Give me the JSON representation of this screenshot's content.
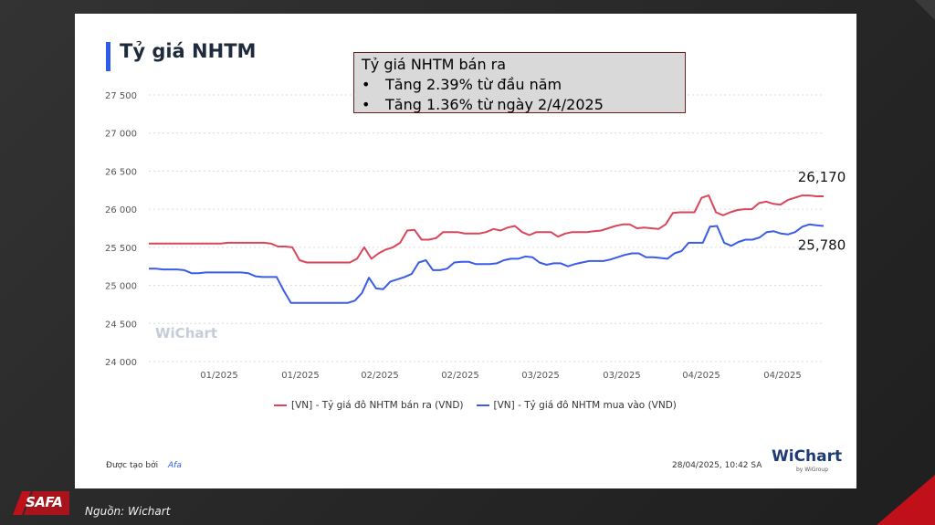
{
  "title": "Tỷ giá NHTM",
  "note": {
    "heading": "Tỷ giá NHTM bán ra",
    "bullets": [
      "Tăng 2.39% từ đầu năm",
      "Tăng 1.36% từ ngày 2/4/2025"
    ]
  },
  "chart_data": {
    "type": "line",
    "yticks": [
      "27 500",
      "27 000",
      "26 500",
      "26 000",
      "25 500",
      "25 000",
      "24 500",
      "24 000"
    ],
    "ylim": [
      24000,
      27500
    ],
    "xticks": [
      "01/2025",
      "01/2025",
      "02/2025",
      "02/2025",
      "03/2025",
      "03/2025",
      "04/2025",
      "04/2025"
    ],
    "grid": true,
    "series": [
      {
        "name": "[VN] - Tỷ giá đô NHTM bán ra (VND)",
        "color": "#d9465a",
        "end_label": "26,170",
        "values": [
          25550,
          25550,
          25550,
          25550,
          25550,
          25550,
          25550,
          25550,
          25550,
          25550,
          25550,
          25560,
          25560,
          25560,
          25560,
          25560,
          25560,
          25550,
          25510,
          25510,
          25500,
          25330,
          25300,
          25300,
          25300,
          25300,
          25300,
          25300,
          25300,
          25350,
          25500,
          25350,
          25420,
          25470,
          25500,
          25560,
          25720,
          25730,
          25600,
          25600,
          25620,
          25700,
          25700,
          25700,
          25680,
          25680,
          25680,
          25700,
          25740,
          25720,
          25760,
          25780,
          25700,
          25660,
          25700,
          25700,
          25700,
          25640,
          25680,
          25700,
          25700,
          25700,
          25710,
          25720,
          25750,
          25780,
          25800,
          25800,
          25750,
          25760,
          25750,
          25740,
          25800,
          25950,
          25960,
          25960,
          25960,
          26150,
          26180,
          25960,
          25920,
          25960,
          25990,
          26000,
          26000,
          26080,
          26100,
          26070,
          26060,
          26120,
          26150,
          26180,
          26180,
          26170,
          26170
        ]
      },
      {
        "name": "[VN] - Tỷ giá đô NHTM mua vào (VND)",
        "color": "#3b5ce6",
        "end_label": "25,780",
        "values": [
          25220,
          25220,
          25210,
          25210,
          25210,
          25200,
          25160,
          25160,
          25170,
          25170,
          25170,
          25170,
          25170,
          25170,
          25160,
          25120,
          25110,
          25110,
          25110,
          24930,
          24770,
          24770,
          24770,
          24770,
          24770,
          24770,
          24770,
          24770,
          24770,
          24800,
          24900,
          25100,
          24960,
          24950,
          25050,
          25080,
          25110,
          25150,
          25300,
          25330,
          25200,
          25200,
          25220,
          25300,
          25310,
          25310,
          25280,
          25280,
          25280,
          25290,
          25330,
          25350,
          25350,
          25380,
          25370,
          25300,
          25270,
          25290,
          25290,
          25250,
          25280,
          25300,
          25320,
          25320,
          25320,
          25340,
          25370,
          25400,
          25420,
          25420,
          25370,
          25370,
          25360,
          25350,
          25420,
          25450,
          25560,
          25560,
          25560,
          25770,
          25780,
          25560,
          25520,
          25570,
          25600,
          25600,
          25630,
          25700,
          25710,
          25680,
          25670,
          25700,
          25770,
          25800,
          25790,
          25780
        ]
      }
    ]
  },
  "watermark": "WiChart",
  "footer": {
    "created_label": "Được tạo bởi",
    "created_by": "Afa",
    "timestamp": "28/04/2025, 10:42 SA",
    "brand": "WiChart",
    "brand_sub": "by WiGroup"
  },
  "afa_logo": "SAFA",
  "source": "Nguồn: Wichart"
}
